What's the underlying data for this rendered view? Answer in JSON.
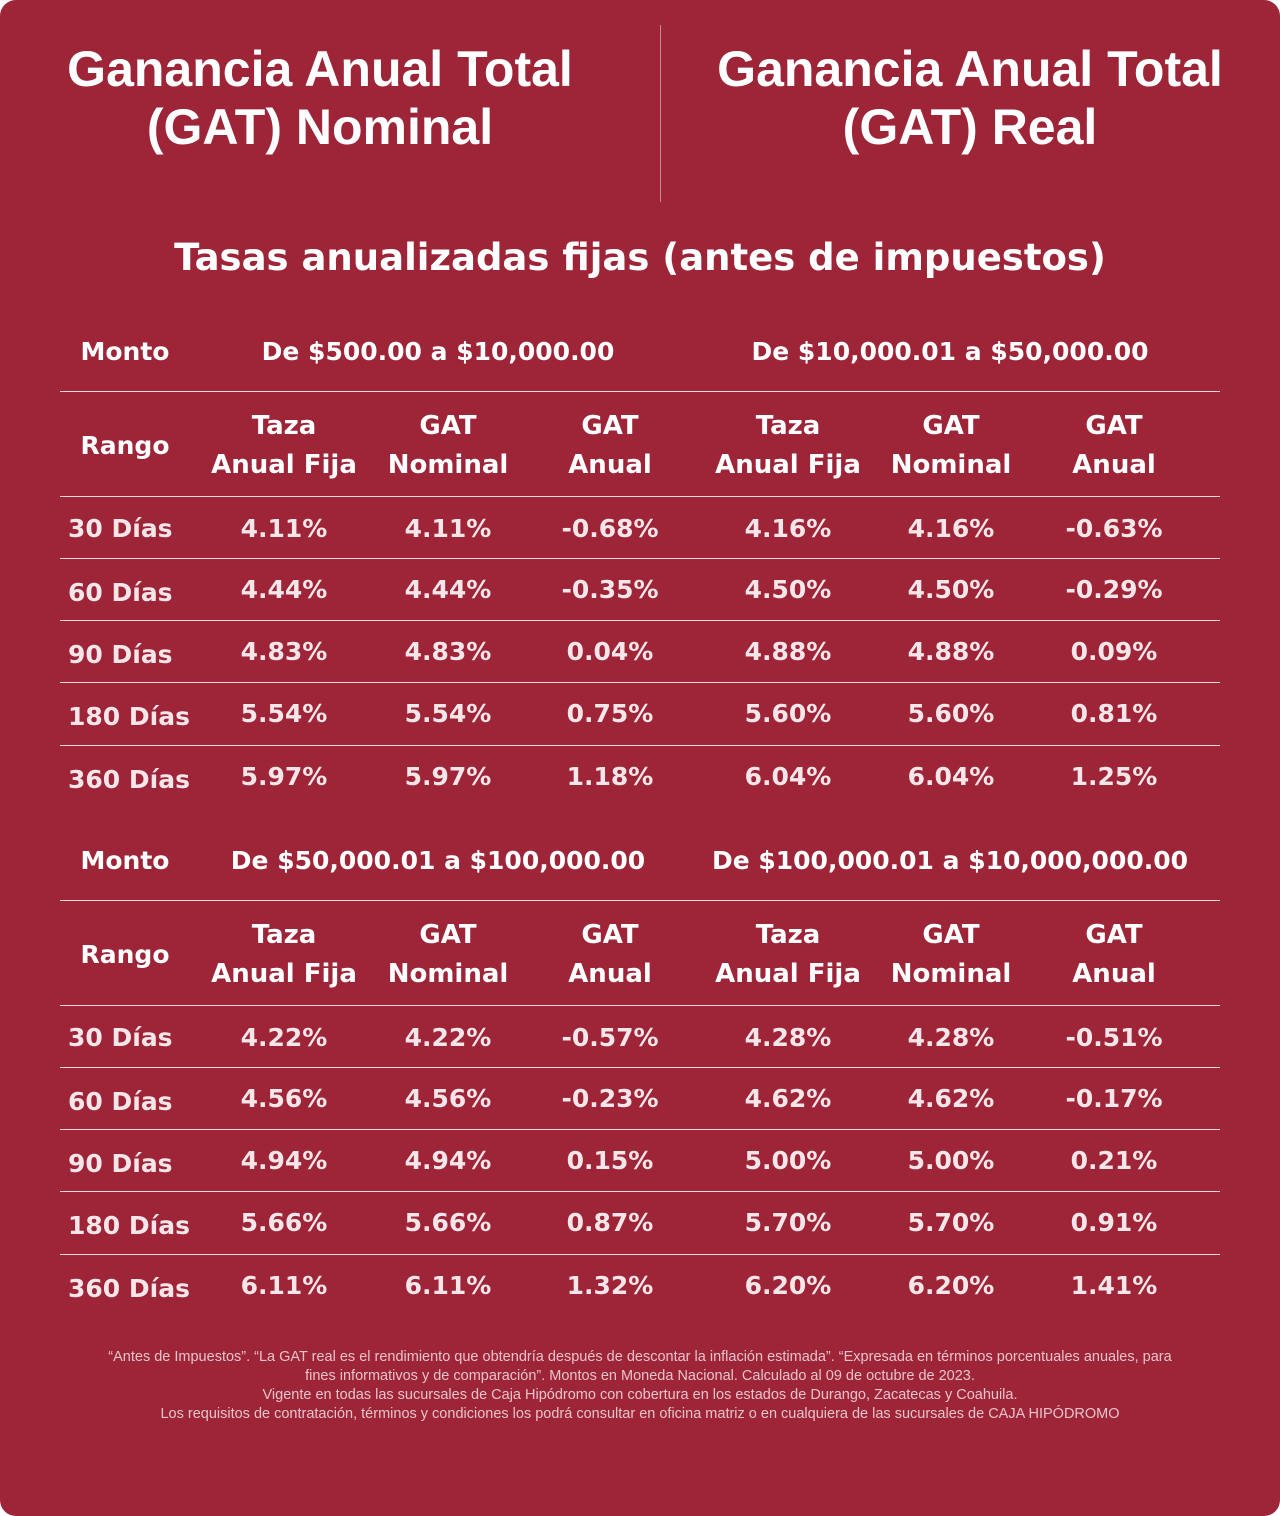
{
  "header": {
    "left_title": [
      "Ganancia Anual Total",
      "(GAT) Nominal"
    ],
    "right_title": [
      "Ganancia Anual Total",
      "(GAT) Real"
    ]
  },
  "subtitle": "Tasas anualizadas fijas (antes de impuestos)",
  "labels": {
    "monto": "Monto",
    "rango": "Rango",
    "col_tasa": "Taza\nAnual Fija",
    "col_gat_nominal": "GAT\nNominal",
    "col_gat_anual": "GAT\nAnual"
  },
  "tables": [
    {
      "ranges": [
        "De $500.00 a $10,000.00",
        "De $10,000.01 a $50,000.00"
      ],
      "rows": [
        {
          "plazo": "30 Días",
          "values": [
            "4.11%",
            "4.11%",
            "-0.68%",
            "4.16%",
            "4.16%",
            "-0.63%"
          ]
        },
        {
          "plazo": "60 Días",
          "values": [
            "4.44%",
            "4.44%",
            "-0.35%",
            "4.50%",
            "4.50%",
            "-0.29%"
          ]
        },
        {
          "plazo": "90 Días",
          "values": [
            "4.83%",
            "4.83%",
            "0.04%",
            "4.88%",
            "4.88%",
            "0.09%"
          ]
        },
        {
          "plazo": "180 Días",
          "values": [
            "5.54%",
            "5.54%",
            "0.75%",
            "5.60%",
            "5.60%",
            "0.81%"
          ]
        },
        {
          "plazo": "360 Días",
          "values": [
            "5.97%",
            "5.97%",
            "1.18%",
            "6.04%",
            "6.04%",
            "1.25%"
          ]
        }
      ]
    },
    {
      "ranges": [
        "De $50,000.01 a $100,000.00",
        "De $100,000.01 a $10,000,000.00"
      ],
      "rows": [
        {
          "plazo": "30 Días",
          "values": [
            "4.22%",
            "4.22%",
            "-0.57%",
            "4.28%",
            "4.28%",
            "-0.51%"
          ]
        },
        {
          "plazo": "60 Días",
          "values": [
            "4.56%",
            "4.56%",
            "-0.23%",
            "4.62%",
            "4.62%",
            "-0.17%"
          ]
        },
        {
          "plazo": "90 Días",
          "values": [
            "4.94%",
            "4.94%",
            "0.15%",
            "5.00%",
            "5.00%",
            "0.21%"
          ]
        },
        {
          "plazo": "180 Días",
          "values": [
            "5.66%",
            "5.66%",
            "0.87%",
            "5.70%",
            "5.70%",
            "0.91%"
          ]
        },
        {
          "plazo": "360 Días",
          "values": [
            "6.11%",
            "6.11%",
            "1.32%",
            "6.20%",
            "6.20%",
            "1.41%"
          ]
        }
      ]
    }
  ],
  "footnote": [
    "“Antes de Impuestos”. “La GAT real es el rendimiento que obtendría después de descontar la inflación estimada”. “Expresada en términos porcentuales anuales, para",
    "fines informativos y de comparación”. Montos en Moneda Nacional. Calculado al 09 de octubre de 2023.",
    "Vigente en todas las sucursales de Caja Hipódromo con cobertura en los estados de Durango, Zacatecas y Coahuila.",
    "Los requisitos de contratación, términos y condiciones los podrá consultar en oficina matriz o en cualquiera de las sucursales de CAJA HIPÓDROMO"
  ],
  "colors": {
    "background": "#9e2438",
    "text": "#ffffff",
    "values": "#f7e6e9",
    "footnote": "#e7c4ca"
  }
}
